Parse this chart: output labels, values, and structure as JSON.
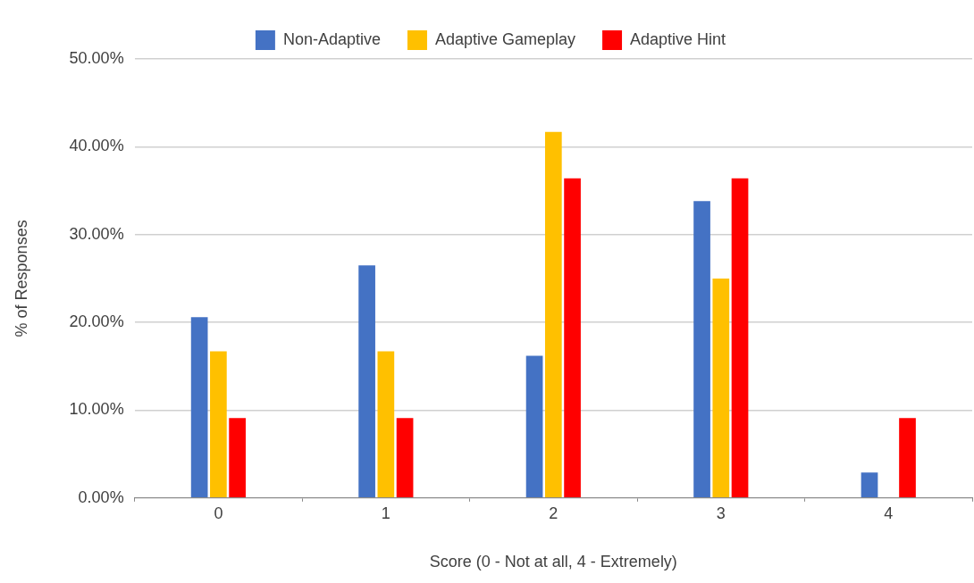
{
  "chart_data": {
    "type": "bar",
    "xlabel": "Score (0 - Not at all, 4 - Extremely)",
    "ylabel": "% of Responses",
    "categories": [
      "0",
      "1",
      "2",
      "3",
      "4"
    ],
    "series": [
      {
        "name": "Non-Adaptive",
        "color": "#4472c4",
        "values": [
          20.6,
          26.5,
          16.2,
          33.8,
          2.9
        ]
      },
      {
        "name": "Adaptive Gameplay",
        "color": "#ffc000",
        "values": [
          16.7,
          16.7,
          41.7,
          25,
          0
        ]
      },
      {
        "name": "Adaptive Hint",
        "color": "#ff0000",
        "values": [
          9.1,
          9.1,
          36.4,
          36.4,
          9.1
        ]
      }
    ],
    "ylim": [
      0,
      50
    ],
    "yticks": [
      {
        "value": 0,
        "label": "0.00%"
      },
      {
        "value": 10,
        "label": "10.00%"
      },
      {
        "value": 20,
        "label": "20.00%"
      },
      {
        "value": 30,
        "label": "30.00%"
      },
      {
        "value": 40,
        "label": "40.00%"
      },
      {
        "value": 50,
        "label": "50.00%"
      }
    ],
    "grid": "y",
    "legend": "top"
  }
}
